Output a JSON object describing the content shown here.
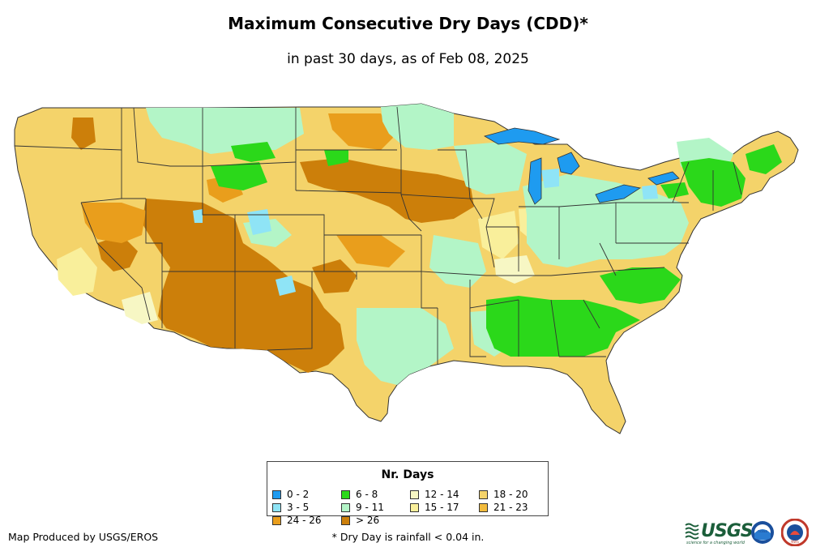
{
  "header": {
    "title": "Maximum Consecutive Dry Days (CDD)*",
    "subtitle": "in past 30 days, as of Feb 08, 2025"
  },
  "legend": {
    "title": "Nr. Days",
    "items": [
      {
        "label": "0 - 2",
        "color": "#1e9bf0"
      },
      {
        "label": "6 - 8",
        "color": "#2bd81a"
      },
      {
        "label": "12 - 14",
        "color": "#f7f7c4"
      },
      {
        "label": "18 - 20",
        "color": "#f4d36a"
      },
      {
        "label": "3 - 5",
        "color": "#8fe4f6"
      },
      {
        "label": "9 - 11",
        "color": "#b3f5c7"
      },
      {
        "label": "15 - 17",
        "color": "#f9ef9b"
      },
      {
        "label": "21 - 23",
        "color": "#f2bb3c"
      },
      {
        "label": "24 - 26",
        "color": "#e99e1c"
      },
      {
        "label": "> 26",
        "color": "#cc7f0a"
      }
    ]
  },
  "footer": {
    "credit": "Map Produced by USGS/EROS",
    "footnote": "* Dry Day is rainfall < 0.04 in."
  },
  "logos": {
    "usgs": "USGS",
    "usgs_tagline": "science for a changing world",
    "noaa": "noaa",
    "nws": "NWS"
  }
}
